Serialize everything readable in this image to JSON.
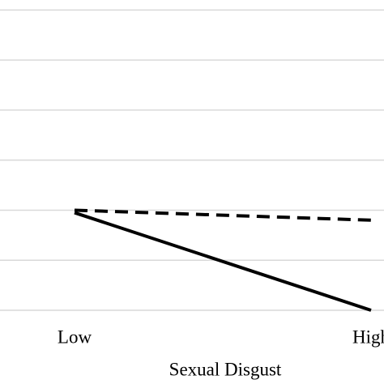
{
  "chart_data": {
    "type": "line",
    "x_label": "Sexual Disgust",
    "categories": [
      "Low",
      "High"
    ],
    "series": [
      {
        "color": "#000000",
        "dashed": true,
        "values": [
          2.0,
          1.8
        ]
      },
      {
        "color": "#000000",
        "dashed": false,
        "values": [
          1.95,
          0.0
        ]
      }
    ],
    "ylim": [
      0,
      6.2
    ],
    "yticks": [
      0,
      1,
      2,
      3,
      4,
      5,
      6
    ],
    "grid": true
  }
}
